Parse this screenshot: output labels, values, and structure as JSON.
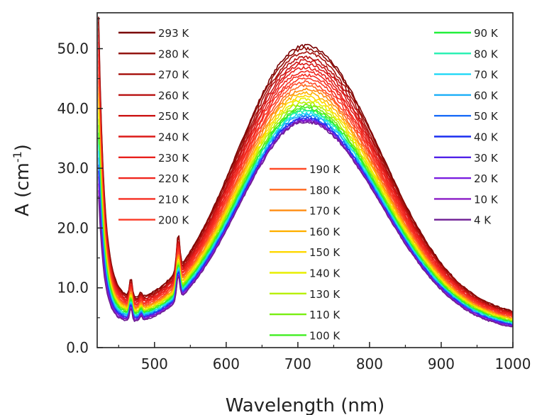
{
  "chart_data": {
    "type": "line",
    "title": "",
    "xlabel": "Wavelength (nm)",
    "ylabel_main": "A (cm",
    "ylabel_sup": "-1",
    "ylabel_close": ")",
    "xlim": [
      420,
      1000
    ],
    "ylim": [
      0,
      56
    ],
    "x_ticks": [
      500,
      600,
      700,
      800,
      900,
      1000
    ],
    "x_tick_labels": [
      "500",
      "600",
      "700",
      "800",
      "900",
      "1000"
    ],
    "y_ticks": [
      0,
      10,
      20,
      30,
      40,
      50
    ],
    "y_tick_labels": [
      "0.0",
      "10.0",
      "20.0",
      "30.0",
      "40.0",
      "50.0"
    ],
    "grid": false,
    "legend_placement": "inside, three columns",
    "peak_wavelength_nm": 710,
    "series": [
      {
        "name": "293 K",
        "color": "#7a0000",
        "peak": 50.5
      },
      {
        "name": "280 K",
        "color": "#8e0a04",
        "peak": 50.0
      },
      {
        "name": "270 K",
        "color": "#a50f0a",
        "peak": 49.3
      },
      {
        "name": "260 K",
        "color": "#b81010",
        "peak": 48.6
      },
      {
        "name": "250 K",
        "color": "#cc1414",
        "peak": 48.0
      },
      {
        "name": "240 K",
        "color": "#dc1a18",
        "peak": 47.4
      },
      {
        "name": "230 K",
        "color": "#e8201c",
        "peak": 46.8
      },
      {
        "name": "220 K",
        "color": "#f0261e",
        "peak": 46.2
      },
      {
        "name": "210 K",
        "color": "#f62e22",
        "peak": 45.6
      },
      {
        "name": "200 K",
        "color": "#fb3a26",
        "peak": 45.0
      },
      {
        "name": "190 K",
        "color": "#ff4a28",
        "peak": 44.4
      },
      {
        "name": "180 K",
        "color": "#ff6a1e",
        "peak": 43.8
      },
      {
        "name": "170 K",
        "color": "#ff8c10",
        "peak": 43.2
      },
      {
        "name": "160 K",
        "color": "#ffb000",
        "peak": 42.6
      },
      {
        "name": "150 K",
        "color": "#ffd800",
        "peak": 42.0
      },
      {
        "name": "140 K",
        "color": "#e8ee00",
        "peak": 41.5
      },
      {
        "name": "130 K",
        "color": "#b8f000",
        "peak": 41.0
      },
      {
        "name": "110 K",
        "color": "#78ee10",
        "peak": 40.5
      },
      {
        "name": "100 K",
        "color": "#40ee20",
        "peak": 40.1
      },
      {
        "name": "90 K",
        "color": "#22f03a",
        "peak": 39.8
      },
      {
        "name": "80 K",
        "color": "#22f0b0",
        "peak": 39.5
      },
      {
        "name": "70 K",
        "color": "#20d8f6",
        "peak": 39.2
      },
      {
        "name": "60 K",
        "color": "#1aaef8",
        "peak": 38.9
      },
      {
        "name": "50 K",
        "color": "#1a6cf8",
        "peak": 38.6
      },
      {
        "name": "40 K",
        "color": "#1a2ef0",
        "peak": 38.4
      },
      {
        "name": "30 K",
        "color": "#5022e8",
        "peak": 38.2
      },
      {
        "name": "20 K",
        "color": "#7a1ee0",
        "peak": 38.0
      },
      {
        "name": "10 K",
        "color": "#8a1cc6",
        "peak": 37.9
      },
      {
        "name": "4 K",
        "color": "#6e1e94",
        "peak": 37.8
      }
    ],
    "legend_columns": [
      [
        "293 K",
        "280 K",
        "270 K",
        "260 K",
        "250 K",
        "240 K",
        "230 K",
        "220 K",
        "210 K",
        "200 K"
      ],
      [
        "190 K",
        "180 K",
        "170 K",
        "160 K",
        "150 K",
        "140 K",
        "130 K",
        "110 K",
        "100 K"
      ],
      [
        "90 K",
        "80 K",
        "70 K",
        "60 K",
        "50 K",
        "40 K",
        "30 K",
        "20 K",
        "10 K",
        "4 K"
      ]
    ]
  }
}
